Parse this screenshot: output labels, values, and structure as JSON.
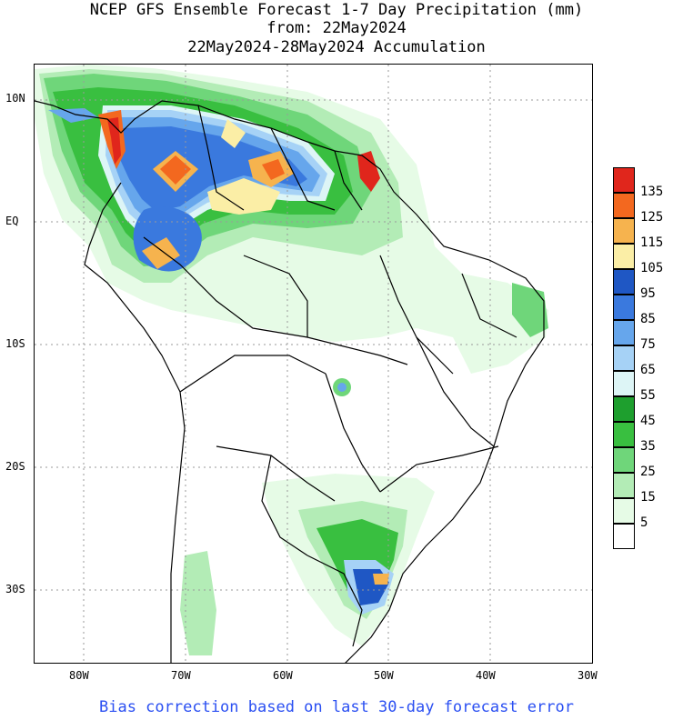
{
  "header": {
    "line1": "NCEP GFS Ensemble Forecast 1-7 Day Precipitation (mm)",
    "line2": "from: 22May2024",
    "line3": "22May2024-28May2024 Accumulation"
  },
  "axes": {
    "lat_ticks": [
      "10N",
      "EQ",
      "10S",
      "20S",
      "30S"
    ],
    "lon_ticks": [
      "80W",
      "70W",
      "60W",
      "50W",
      "40W",
      "30W"
    ]
  },
  "legend": {
    "labels": [
      "135",
      "125",
      "115",
      "105",
      "95",
      "85",
      "75",
      "65",
      "55",
      "45",
      "35",
      "25",
      "15",
      "5"
    ],
    "colors": [
      "#e0261c",
      "#f3681f",
      "#f6b34e",
      "#fbeea6",
      "#1f57c4",
      "#3a79de",
      "#66a6ec",
      "#a6d2f6",
      "#ddf5f6",
      "#1e9f2e",
      "#39bf40",
      "#6fd67a",
      "#b3ecb6",
      "#e6fbe6",
      "#ffffff"
    ]
  },
  "footer": {
    "text": "Bias correction based on last 30-day forecast error"
  }
}
